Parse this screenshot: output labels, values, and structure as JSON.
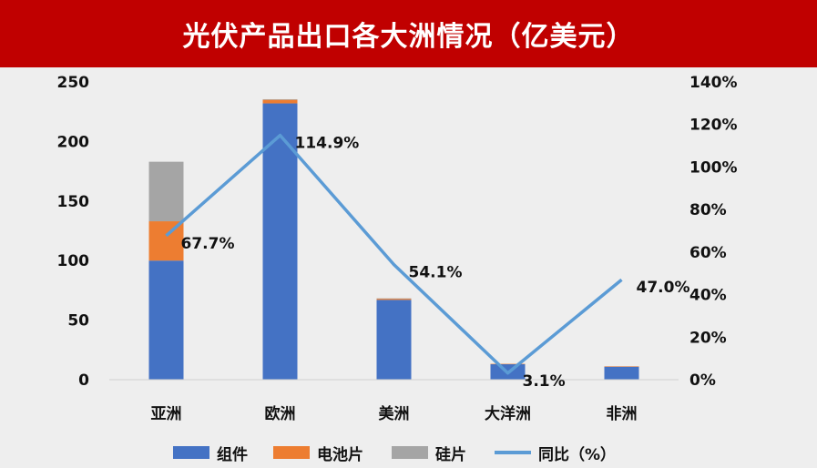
{
  "title": "光伏产品出口各大洲情况（亿美元）",
  "colors": {
    "title_bg": "#c00000",
    "module": "#4472c4",
    "cell": "#ed7d31",
    "wafer": "#a5a5a5",
    "yoy": "#5b9bd5"
  },
  "chart_data": {
    "type": "bar",
    "stacked": true,
    "categories": [
      "亚洲",
      "欧洲",
      "美洲",
      "大洋洲",
      "非洲"
    ],
    "series": [
      {
        "name": "组件",
        "values": [
          100,
          232,
          67,
          13,
          11
        ]
      },
      {
        "name": "电池片",
        "values": [
          33,
          3,
          1,
          0.3,
          0.2
        ]
      },
      {
        "name": "硅片",
        "values": [
          50,
          0.5,
          0.3,
          0,
          0
        ]
      }
    ],
    "line_series": {
      "name": "同比（%）",
      "axis": "right",
      "values": [
        67.7,
        114.9,
        54.1,
        3.1,
        47.0
      ],
      "labels": [
        "67.7%",
        "114.9%",
        "54.1%",
        "3.1%",
        "47.0%"
      ]
    },
    "ylim": [
      0,
      250
    ],
    "y_ticks": [
      "0",
      "50",
      "100",
      "150",
      "200",
      "250"
    ],
    "y2lim": [
      0,
      140
    ],
    "y2_ticks": [
      "0%",
      "20%",
      "40%",
      "60%",
      "80%",
      "100%",
      "120%",
      "140%"
    ],
    "legend_position": "bottom",
    "grid": false
  },
  "legend": [
    "组件",
    "电池片",
    "硅片",
    "同比（%）"
  ]
}
